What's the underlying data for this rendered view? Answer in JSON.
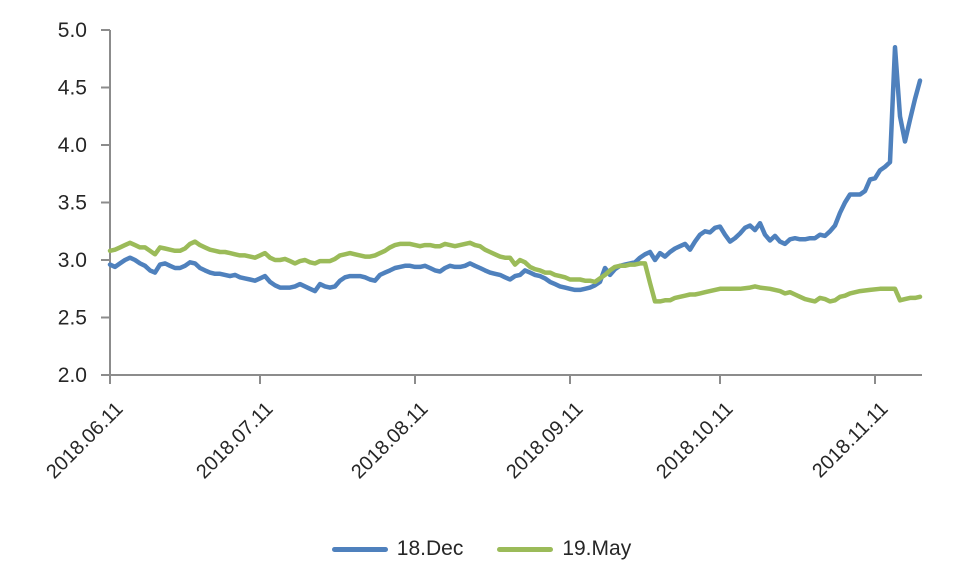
{
  "chart_data": {
    "type": "line",
    "title": "",
    "grid": false,
    "axis_color": "#8C8C8C",
    "text_color": "#262626",
    "legend_position": "bottom",
    "y_axis": {
      "range": [
        2.0,
        5.0
      ],
      "tick_interval": 0.5,
      "tick_labels": [
        "2.0",
        "2.5",
        "3.0",
        "3.5",
        "4.0",
        "4.5",
        "5.0"
      ]
    },
    "x_axis": {
      "tick_labels": [
        "2018.06.11",
        "2018.07.11",
        "2018.08.11",
        "2018.09.11",
        "2018.10.11",
        "2018.11.11"
      ],
      "tick_days": [
        0,
        30,
        61,
        92,
        122,
        153
      ],
      "range_days": [
        0,
        162
      ]
    },
    "series": [
      {
        "name": "18.Dec",
        "color": "#4F81BD",
        "points": [
          [
            0,
            2.96
          ],
          [
            1,
            2.94
          ],
          [
            2,
            2.97
          ],
          [
            3,
            3.0
          ],
          [
            4,
            3.02
          ],
          [
            5,
            3.0
          ],
          [
            6,
            2.97
          ],
          [
            7,
            2.95
          ],
          [
            8,
            2.91
          ],
          [
            9,
            2.89
          ],
          [
            10,
            2.96
          ],
          [
            11,
            2.97
          ],
          [
            12,
            2.95
          ],
          [
            13,
            2.93
          ],
          [
            14,
            2.93
          ],
          [
            15,
            2.95
          ],
          [
            16,
            2.98
          ],
          [
            17,
            2.97
          ],
          [
            18,
            2.93
          ],
          [
            19,
            2.91
          ],
          [
            20,
            2.89
          ],
          [
            21,
            2.88
          ],
          [
            22,
            2.88
          ],
          [
            23,
            2.87
          ],
          [
            24,
            2.86
          ],
          [
            25,
            2.87
          ],
          [
            26,
            2.85
          ],
          [
            27,
            2.84
          ],
          [
            28,
            2.83
          ],
          [
            29,
            2.82
          ],
          [
            30,
            2.84
          ],
          [
            31,
            2.86
          ],
          [
            32,
            2.81
          ],
          [
            33,
            2.78
          ],
          [
            34,
            2.76
          ],
          [
            35,
            2.76
          ],
          [
            36,
            2.76
          ],
          [
            37,
            2.77
          ],
          [
            38,
            2.79
          ],
          [
            39,
            2.77
          ],
          [
            40,
            2.75
          ],
          [
            41,
            2.73
          ],
          [
            42,
            2.79
          ],
          [
            43,
            2.77
          ],
          [
            44,
            2.76
          ],
          [
            45,
            2.77
          ],
          [
            46,
            2.82
          ],
          [
            47,
            2.85
          ],
          [
            48,
            2.86
          ],
          [
            49,
            2.86
          ],
          [
            50,
            2.86
          ],
          [
            51,
            2.85
          ],
          [
            52,
            2.83
          ],
          [
            53,
            2.82
          ],
          [
            54,
            2.87
          ],
          [
            55,
            2.89
          ],
          [
            56,
            2.91
          ],
          [
            57,
            2.93
          ],
          [
            58,
            2.94
          ],
          [
            59,
            2.95
          ],
          [
            60,
            2.95
          ],
          [
            61,
            2.94
          ],
          [
            62,
            2.94
          ],
          [
            63,
            2.95
          ],
          [
            64,
            2.93
          ],
          [
            65,
            2.91
          ],
          [
            66,
            2.9
          ],
          [
            67,
            2.93
          ],
          [
            68,
            2.95
          ],
          [
            69,
            2.94
          ],
          [
            70,
            2.94
          ],
          [
            71,
            2.95
          ],
          [
            72,
            2.97
          ],
          [
            73,
            2.95
          ],
          [
            74,
            2.93
          ],
          [
            75,
            2.91
          ],
          [
            76,
            2.89
          ],
          [
            77,
            2.88
          ],
          [
            78,
            2.87
          ],
          [
            79,
            2.85
          ],
          [
            80,
            2.83
          ],
          [
            81,
            2.86
          ],
          [
            82,
            2.87
          ],
          [
            83,
            2.91
          ],
          [
            84,
            2.89
          ],
          [
            85,
            2.87
          ],
          [
            86,
            2.86
          ],
          [
            87,
            2.84
          ],
          [
            88,
            2.81
          ],
          [
            89,
            2.79
          ],
          [
            90,
            2.77
          ],
          [
            91,
            2.76
          ],
          [
            92,
            2.75
          ],
          [
            93,
            2.74
          ],
          [
            94,
            2.74
          ],
          [
            95,
            2.75
          ],
          [
            96,
            2.76
          ],
          [
            97,
            2.78
          ],
          [
            98,
            2.81
          ],
          [
            99,
            2.93
          ],
          [
            100,
            2.87
          ],
          [
            101,
            2.92
          ],
          [
            102,
            2.95
          ],
          [
            103,
            2.96
          ],
          [
            104,
            2.97
          ],
          [
            105,
            2.98
          ],
          [
            106,
            3.02
          ],
          [
            107,
            3.05
          ],
          [
            108,
            3.07
          ],
          [
            109,
            3.0
          ],
          [
            110,
            3.06
          ],
          [
            111,
            3.03
          ],
          [
            112,
            3.07
          ],
          [
            113,
            3.1
          ],
          [
            114,
            3.12
          ],
          [
            115,
            3.14
          ],
          [
            116,
            3.09
          ],
          [
            117,
            3.16
          ],
          [
            118,
            3.22
          ],
          [
            119,
            3.25
          ],
          [
            120,
            3.24
          ],
          [
            121,
            3.28
          ],
          [
            122,
            3.29
          ],
          [
            123,
            3.22
          ],
          [
            124,
            3.16
          ],
          [
            125,
            3.19
          ],
          [
            126,
            3.23
          ],
          [
            127,
            3.28
          ],
          [
            128,
            3.3
          ],
          [
            129,
            3.26
          ],
          [
            130,
            3.32
          ],
          [
            131,
            3.22
          ],
          [
            132,
            3.17
          ],
          [
            133,
            3.21
          ],
          [
            134,
            3.16
          ],
          [
            135,
            3.14
          ],
          [
            136,
            3.18
          ],
          [
            137,
            3.19
          ],
          [
            138,
            3.18
          ],
          [
            139,
            3.18
          ],
          [
            140,
            3.19
          ],
          [
            141,
            3.19
          ],
          [
            142,
            3.22
          ],
          [
            143,
            3.21
          ],
          [
            144,
            3.25
          ],
          [
            145,
            3.3
          ],
          [
            146,
            3.41
          ],
          [
            147,
            3.5
          ],
          [
            148,
            3.57
          ],
          [
            149,
            3.57
          ],
          [
            150,
            3.57
          ],
          [
            151,
            3.6
          ],
          [
            152,
            3.7
          ],
          [
            153,
            3.71
          ],
          [
            154,
            3.78
          ],
          [
            155,
            3.81
          ],
          [
            156,
            3.85
          ],
          [
            157,
            4.85
          ],
          [
            158,
            4.25
          ],
          [
            159,
            4.03
          ],
          [
            160,
            4.22
          ],
          [
            161,
            4.4
          ],
          [
            162,
            4.56
          ]
        ]
      },
      {
        "name": "19.May",
        "color": "#9BBB59",
        "points": [
          [
            0,
            3.08
          ],
          [
            1,
            3.09
          ],
          [
            2,
            3.11
          ],
          [
            3,
            3.13
          ],
          [
            4,
            3.15
          ],
          [
            5,
            3.13
          ],
          [
            6,
            3.11
          ],
          [
            7,
            3.11
          ],
          [
            8,
            3.08
          ],
          [
            9,
            3.05
          ],
          [
            10,
            3.11
          ],
          [
            11,
            3.1
          ],
          [
            12,
            3.09
          ],
          [
            13,
            3.08
          ],
          [
            14,
            3.08
          ],
          [
            15,
            3.1
          ],
          [
            16,
            3.14
          ],
          [
            17,
            3.16
          ],
          [
            18,
            3.13
          ],
          [
            19,
            3.11
          ],
          [
            20,
            3.09
          ],
          [
            21,
            3.08
          ],
          [
            22,
            3.07
          ],
          [
            23,
            3.07
          ],
          [
            24,
            3.06
          ],
          [
            25,
            3.05
          ],
          [
            26,
            3.04
          ],
          [
            27,
            3.04
          ],
          [
            28,
            3.03
          ],
          [
            29,
            3.02
          ],
          [
            30,
            3.04
          ],
          [
            31,
            3.06
          ],
          [
            32,
            3.02
          ],
          [
            33,
            3.0
          ],
          [
            34,
            3.0
          ],
          [
            35,
            3.01
          ],
          [
            36,
            2.99
          ],
          [
            37,
            2.97
          ],
          [
            38,
            2.99
          ],
          [
            39,
            3.0
          ],
          [
            40,
            2.98
          ],
          [
            41,
            2.97
          ],
          [
            42,
            2.99
          ],
          [
            43,
            2.99
          ],
          [
            44,
            2.99
          ],
          [
            45,
            3.01
          ],
          [
            46,
            3.04
          ],
          [
            47,
            3.05
          ],
          [
            48,
            3.06
          ],
          [
            49,
            3.05
          ],
          [
            50,
            3.04
          ],
          [
            51,
            3.03
          ],
          [
            52,
            3.03
          ],
          [
            53,
            3.04
          ],
          [
            54,
            3.06
          ],
          [
            55,
            3.08
          ],
          [
            56,
            3.11
          ],
          [
            57,
            3.13
          ],
          [
            58,
            3.14
          ],
          [
            59,
            3.14
          ],
          [
            60,
            3.14
          ],
          [
            61,
            3.13
          ],
          [
            62,
            3.12
          ],
          [
            63,
            3.13
          ],
          [
            64,
            3.13
          ],
          [
            65,
            3.12
          ],
          [
            66,
            3.12
          ],
          [
            67,
            3.14
          ],
          [
            68,
            3.13
          ],
          [
            69,
            3.12
          ],
          [
            70,
            3.13
          ],
          [
            71,
            3.14
          ],
          [
            72,
            3.15
          ],
          [
            73,
            3.13
          ],
          [
            74,
            3.12
          ],
          [
            75,
            3.09
          ],
          [
            76,
            3.07
          ],
          [
            77,
            3.05
          ],
          [
            78,
            3.03
          ],
          [
            79,
            3.02
          ],
          [
            80,
            3.02
          ],
          [
            81,
            2.96
          ],
          [
            82,
            3.0
          ],
          [
            83,
            2.98
          ],
          [
            84,
            2.94
          ],
          [
            85,
            2.92
          ],
          [
            86,
            2.91
          ],
          [
            87,
            2.89
          ],
          [
            88,
            2.89
          ],
          [
            89,
            2.87
          ],
          [
            90,
            2.86
          ],
          [
            91,
            2.85
          ],
          [
            92,
            2.83
          ],
          [
            93,
            2.83
          ],
          [
            94,
            2.83
          ],
          [
            95,
            2.82
          ],
          [
            96,
            2.82
          ],
          [
            97,
            2.81
          ],
          [
            98,
            2.84
          ],
          [
            99,
            2.87
          ],
          [
            100,
            2.91
          ],
          [
            101,
            2.94
          ],
          [
            102,
            2.95
          ],
          [
            103,
            2.95
          ],
          [
            104,
            2.96
          ],
          [
            105,
            2.96
          ],
          [
            106,
            2.97
          ],
          [
            107,
            2.97
          ],
          [
            108,
            2.8
          ],
          [
            109,
            2.64
          ],
          [
            110,
            2.64
          ],
          [
            111,
            2.65
          ],
          [
            112,
            2.65
          ],
          [
            113,
            2.67
          ],
          [
            114,
            2.68
          ],
          [
            115,
            2.69
          ],
          [
            116,
            2.7
          ],
          [
            117,
            2.7
          ],
          [
            118,
            2.71
          ],
          [
            119,
            2.72
          ],
          [
            120,
            2.73
          ],
          [
            121,
            2.74
          ],
          [
            122,
            2.75
          ],
          [
            124,
            2.75
          ],
          [
            126,
            2.75
          ],
          [
            128,
            2.76
          ],
          [
            129,
            2.77
          ],
          [
            130,
            2.76
          ],
          [
            132,
            2.75
          ],
          [
            134,
            2.73
          ],
          [
            135,
            2.71
          ],
          [
            136,
            2.72
          ],
          [
            137,
            2.7
          ],
          [
            138,
            2.68
          ],
          [
            139,
            2.66
          ],
          [
            140,
            2.65
          ],
          [
            141,
            2.64
          ],
          [
            142,
            2.67
          ],
          [
            143,
            2.66
          ],
          [
            144,
            2.64
          ],
          [
            145,
            2.65
          ],
          [
            146,
            2.68
          ],
          [
            147,
            2.69
          ],
          [
            148,
            2.71
          ],
          [
            150,
            2.73
          ],
          [
            152,
            2.74
          ],
          [
            154,
            2.75
          ],
          [
            156,
            2.75
          ],
          [
            157,
            2.75
          ],
          [
            158,
            2.65
          ],
          [
            159,
            2.66
          ],
          [
            160,
            2.67
          ],
          [
            161,
            2.67
          ],
          [
            162,
            2.68
          ]
        ]
      }
    ]
  }
}
